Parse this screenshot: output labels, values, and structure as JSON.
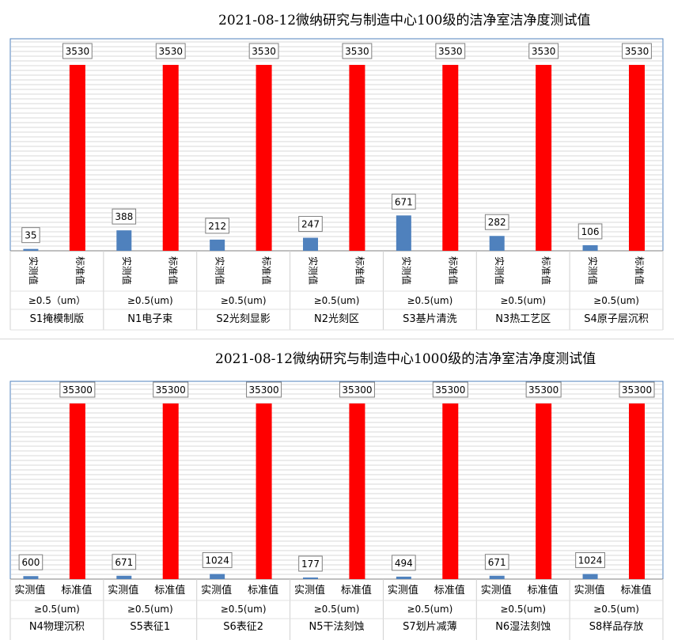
{
  "chart_data": [
    {
      "type": "bar",
      "title": "2021-08-12微纳研究与制造中心100级的洁净室洁净度测试值",
      "series_labels": [
        "实测值",
        "标准值"
      ],
      "size_label": "≥0.5（um）",
      "size_label_alt": "≥0.5(um)",
      "categories": [
        "S1掩模制版",
        "N1电子束",
        "S2光刻显影",
        "N2光刻区",
        "S3基片清洗",
        "N3热工艺区",
        "S4原子层沉积"
      ],
      "series": [
        {
          "name": "实测值",
          "values": [
            35,
            388,
            212,
            247,
            671,
            282,
            106
          ],
          "color": "#4f81bd"
        },
        {
          "name": "标准值",
          "values": [
            3530,
            3530,
            3530,
            3530,
            3530,
            3530,
            3530
          ],
          "color": "#ff0000"
        }
      ],
      "ylim": [
        0,
        3530
      ],
      "grid": true,
      "vertical_series_labels": true
    },
    {
      "type": "bar",
      "title": "2021-08-12微纳研究与制造中心1000级的洁净室洁净度测试值",
      "series_labels": [
        "实测值",
        "标准值"
      ],
      "size_label": "≥0.5(um)",
      "size_label_alt": "≥0.5(um)",
      "categories": [
        "N4物理沉积",
        "S5表征1",
        "S6表征2",
        "N5干法刻蚀",
        "S7划片减薄",
        "N6湿法刻蚀",
        "S8样品存放"
      ],
      "series": [
        {
          "name": "实测值",
          "values": [
            600,
            671,
            1024,
            177,
            494,
            671,
            1024
          ],
          "color": "#4f81bd"
        },
        {
          "name": "标准值",
          "values": [
            35300,
            35300,
            35300,
            35300,
            35300,
            35300,
            35300
          ],
          "color": "#ff0000"
        }
      ],
      "ylim": [
        0,
        35300
      ],
      "grid": true,
      "vertical_series_labels": false
    }
  ]
}
